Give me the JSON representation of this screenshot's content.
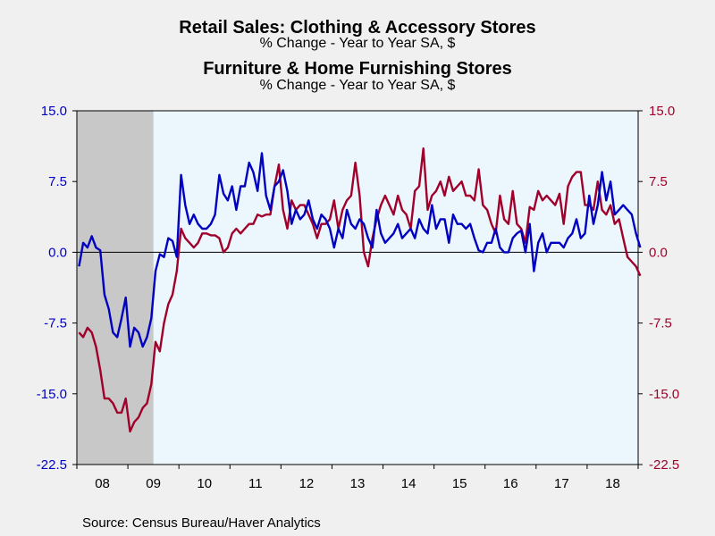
{
  "colors": {
    "clothing": "#0000c0",
    "furniture": "#a0002a",
    "plot_bg": "#ecf6fd",
    "recession": "#c8c8c8",
    "background": "#f0f0f0"
  },
  "header": {
    "title1": "Retail Sales: Clothing & Accessory Stores",
    "subtitle1": "% Change - Year to Year    SA, $",
    "title2": "Furniture & Home Furnishing Stores",
    "subtitle2": "% Change - Year to Year    SA, $"
  },
  "source": "Source:  Census Bureau/Haver Analytics",
  "chart_data": {
    "type": "line",
    "x_start": "2008-01",
    "x_end": "2018-12",
    "x_tick_labels": [
      "08",
      "09",
      "10",
      "11",
      "12",
      "13",
      "14",
      "15",
      "16",
      "17",
      "18"
    ],
    "ylim": [
      -22.5,
      15.0
    ],
    "y_ticks": [
      15.0,
      7.5,
      0.0,
      -7.5,
      -15.0,
      -22.5
    ],
    "y_tick_labels_left": [
      "15.0",
      "7.5",
      "0.0",
      "-7.5",
      "-15.0",
      "-22.5"
    ],
    "y_tick_labels_right": [
      "15.0",
      "7.5",
      "0.0",
      "-7.5",
      "-15.0",
      "-22.5"
    ],
    "zero_line": true,
    "recession_shade": [
      "2008-01",
      "2009-06"
    ],
    "series": [
      {
        "name": "Retail Sales: Clothing & Accessory Stores",
        "axis": "left",
        "color": "#0000c0",
        "values": [
          -1.5,
          1.0,
          0.5,
          1.7,
          0.5,
          0.2,
          -4.5,
          -6.0,
          -8.5,
          -9.0,
          -7.0,
          -4.8,
          -10.0,
          -8.0,
          -8.5,
          -10.0,
          -9.0,
          -7.0,
          -2.0,
          -0.2,
          -0.5,
          1.5,
          1.2,
          -0.5,
          8.2,
          5.0,
          3.0,
          4.0,
          3.0,
          2.5,
          2.5,
          3.0,
          4.0,
          8.2,
          6.2,
          5.5,
          7.0,
          4.5,
          7.0,
          7.0,
          9.5,
          8.5,
          6.5,
          10.5,
          6.0,
          4.5,
          7.0,
          7.5,
          8.7,
          6.5,
          3.0,
          4.5,
          3.5,
          4.0,
          5.5,
          3.5,
          2.5,
          4.0,
          3.5,
          2.5,
          0.5,
          2.5,
          1.5,
          4.5,
          3.0,
          2.5,
          3.5,
          3.0,
          1.5,
          0.5,
          4.5,
          2.0,
          1.0,
          1.5,
          2.0,
          3.0,
          1.5,
          2.0,
          2.5,
          1.5,
          3.5,
          2.5,
          2.0,
          5.0,
          2.5,
          3.5,
          3.5,
          1.0,
          4.0,
          3.0,
          3.0,
          2.5,
          3.0,
          1.5,
          0.2,
          0.0,
          1.0,
          1.0,
          2.5,
          0.5,
          0.0,
          0.0,
          1.5,
          2.0,
          2.3,
          0.0,
          3.0,
          -2.0,
          1.0,
          2.0,
          0.0,
          1.0,
          1.0,
          1.0,
          0.5,
          1.5,
          2.0,
          3.5,
          1.5,
          2.0,
          6.0,
          3.0,
          5.0,
          8.5,
          5.5,
          7.5,
          4.0,
          4.5,
          5.0,
          4.5,
          4.0,
          2.0,
          0.5
        ]
      },
      {
        "name": "Furniture & Home Furnishing Stores",
        "axis": "right",
        "color": "#a0002a",
        "values": [
          -8.5,
          -9.0,
          -8.0,
          -8.5,
          -10.0,
          -12.5,
          -15.5,
          -15.5,
          -16.0,
          -17.0,
          -17.0,
          -15.5,
          -19.0,
          -18.0,
          -17.5,
          -16.5,
          -16.0,
          -14.0,
          -9.5,
          -10.5,
          -7.5,
          -5.5,
          -4.5,
          -2.0,
          2.5,
          1.5,
          1.0,
          0.5,
          1.0,
          2.0,
          2.0,
          1.8,
          1.8,
          1.5,
          0.0,
          0.5,
          2.0,
          2.5,
          2.0,
          2.5,
          3.0,
          3.0,
          4.0,
          3.8,
          4.0,
          4.0,
          7.0,
          9.3,
          4.5,
          2.5,
          5.5,
          4.5,
          5.0,
          5.0,
          4.0,
          3.0,
          1.5,
          3.0,
          3.0,
          3.5,
          5.5,
          2.5,
          4.5,
          5.5,
          6.0,
          9.5,
          6.0,
          0.0,
          -1.5,
          1.5,
          3.5,
          5.0,
          6.0,
          5.0,
          4.0,
          6.0,
          4.5,
          4.0,
          2.5,
          6.5,
          7.0,
          11.0,
          4.5,
          6.0,
          6.5,
          7.5,
          6.0,
          8.0,
          6.5,
          7.0,
          7.5,
          6.0,
          6.0,
          5.5,
          8.8,
          5.0,
          4.5,
          3.0,
          2.0,
          6.0,
          3.5,
          3.0,
          6.5,
          3.0,
          2.5,
          1.0,
          4.8,
          4.5,
          6.5,
          5.5,
          6.0,
          5.5,
          5.0,
          6.2,
          3.0,
          7.0,
          8.0,
          8.5,
          8.5,
          5.0,
          5.0,
          4.5,
          7.5,
          4.5,
          4.0,
          5.0,
          3.0,
          3.5,
          1.5,
          -0.5,
          -1.0,
          -1.5,
          -2.5
        ]
      }
    ]
  }
}
